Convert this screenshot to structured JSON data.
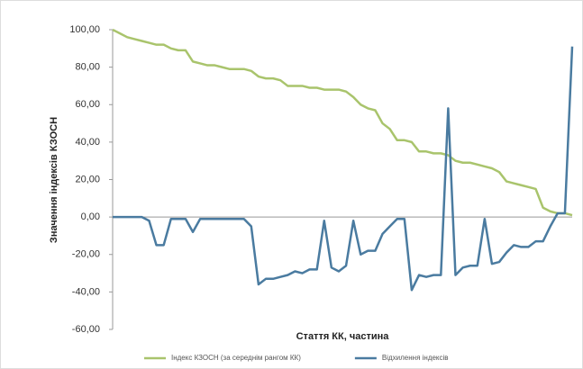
{
  "chart_data": {
    "type": "line",
    "y_label": "Значення індексів КЗОСН",
    "x_label": "Стаття КК, частина",
    "ylim": [
      -60,
      100
    ],
    "yticks": [
      {
        "value": -60,
        "label": "-60,00"
      },
      {
        "value": -40,
        "label": "-40,00"
      },
      {
        "value": -20,
        "label": "-20,00"
      },
      {
        "value": 0,
        "label": "0,00"
      },
      {
        "value": 20,
        "label": "20,00"
      },
      {
        "value": 40,
        "label": "40,00"
      },
      {
        "value": 60,
        "label": "60,00"
      },
      {
        "value": 80,
        "label": "80,00"
      },
      {
        "value": 100,
        "label": "100,00"
      }
    ],
    "legend": "bottom",
    "series": [
      {
        "name": "Індекс КЗОСН (за середнім рангом КК)",
        "color": "#a9c46c",
        "values": [
          100,
          98,
          96,
          95,
          94,
          93,
          92,
          92,
          90,
          89,
          89,
          83,
          82,
          81,
          81,
          80,
          79,
          79,
          79,
          78,
          75,
          74,
          74,
          73,
          70,
          70,
          70,
          69,
          69,
          68,
          68,
          68,
          67,
          64,
          60,
          58,
          57,
          50,
          47,
          41,
          41,
          40,
          35,
          35,
          34,
          34,
          33,
          30,
          29,
          29,
          28,
          27,
          26,
          24,
          19,
          18,
          17,
          16,
          15,
          5,
          3,
          2,
          2,
          1
        ]
      },
      {
        "name": "Відхилення індексів",
        "color": "#4a7ba0",
        "values": [
          0,
          0,
          0,
          0,
          0,
          -2,
          -15,
          -15,
          -1,
          -1,
          -1,
          -8,
          -1,
          -1,
          -1,
          -1,
          -1,
          -1,
          -1,
          -5,
          -36,
          -33,
          -33,
          -32,
          -31,
          -29,
          -30,
          -28,
          -28,
          -2,
          -27,
          -29,
          -26,
          -2,
          -20,
          -18,
          -18,
          -9,
          -5,
          -1,
          -1,
          -39,
          -31,
          -32,
          -31,
          -31,
          58,
          -31,
          -27,
          -26,
          -26,
          -1,
          -25,
          -24,
          -19,
          -15,
          -16,
          -16,
          -13,
          -13,
          -5,
          2,
          2,
          91
        ]
      }
    ]
  }
}
